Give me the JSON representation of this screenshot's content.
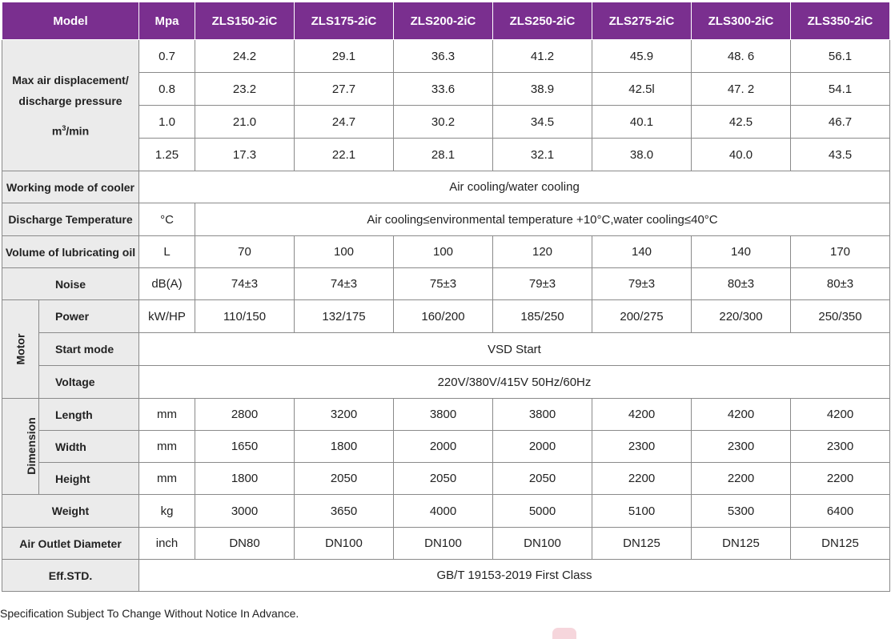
{
  "header": {
    "model_label": "Model",
    "mpa_label": "Mpa",
    "models": [
      "ZLS150-2iC",
      "ZLS175-2iC",
      "ZLS200-2iC",
      "ZLS250-2iC",
      "ZLS275-2iC",
      "ZLS300-2iC",
      "ZLS350-2iC"
    ]
  },
  "air_displacement": {
    "label_line1": "Max air displacement/",
    "label_line2": "discharge pressure",
    "unit_base": "m",
    "unit_sup": "3",
    "unit_rest": "/min",
    "rows": [
      {
        "pressure": "0.7",
        "values": [
          "24.2",
          "29.1",
          "36.3",
          "41.2",
          "45.9",
          "48. 6",
          "56.1"
        ]
      },
      {
        "pressure": "0.8",
        "values": [
          "23.2",
          "27.7",
          "33.6",
          "38.9",
          "42.5l",
          "47. 2",
          "54.1"
        ]
      },
      {
        "pressure": "1.0",
        "values": [
          "21.0",
          "24.7",
          "30.2",
          "34.5",
          "40.1",
          "42.5",
          "46.7"
        ]
      },
      {
        "pressure": "1.25",
        "values": [
          "17.3",
          "22.1",
          "28.1",
          "32.1",
          "38.0",
          "40.0",
          "43.5"
        ]
      }
    ]
  },
  "cooler": {
    "label": "Working mode of cooler",
    "value": "Air cooling/water cooling"
  },
  "discharge_temp": {
    "label": "Discharge Temperature",
    "unit": "°C",
    "value": "Air cooling≤environmental temperature +10°C,water cooling≤40°C"
  },
  "lub_oil": {
    "label": "Volume of lubricating oil",
    "unit": "L",
    "values": [
      "70",
      "100",
      "100",
      "120",
      "140",
      "140",
      "170"
    ]
  },
  "noise": {
    "label": "Noise",
    "unit": "dB(A)",
    "values": [
      "74±3",
      "74±3",
      "75±3",
      "79±3",
      "79±3",
      "80±3",
      "80±3"
    ]
  },
  "motor": {
    "group_label": "Motor",
    "power": {
      "label": "Power",
      "unit": "kW/HP",
      "values": [
        "110/150",
        "132/175",
        "160/200",
        "185/250",
        "200/275",
        "220/300",
        "250/350"
      ]
    },
    "start_mode": {
      "label": "Start mode",
      "value": "VSD Start"
    },
    "voltage": {
      "label": "Voltage",
      "value": "220V/380V/415V  50Hz/60Hz"
    }
  },
  "dimension": {
    "group_label": "Dimension",
    "length": {
      "label": "Length",
      "unit": "mm",
      "values": [
        "2800",
        "3200",
        "3800",
        "3800",
        "4200",
        "4200",
        "4200"
      ]
    },
    "width": {
      "label": "Width",
      "unit": "mm",
      "values": [
        "1650",
        "1800",
        "2000",
        "2000",
        "2300",
        "2300",
        "2300"
      ]
    },
    "height": {
      "label": "Height",
      "unit": "mm",
      "values": [
        "1800",
        "2050",
        "2050",
        "2050",
        "2200",
        "2200",
        "2200"
      ]
    }
  },
  "weight": {
    "label": "Weight",
    "unit": "kg",
    "values": [
      "3000",
      "3650",
      "4000",
      "5000",
      "5100",
      "5300",
      "6400"
    ]
  },
  "outlet": {
    "label": "Air Outlet Diameter",
    "unit": "inch",
    "values": [
      "DN80",
      "DN100",
      "DN100",
      "DN100",
      "DN125",
      "DN125",
      "DN125"
    ]
  },
  "eff": {
    "label": "Eff.STD.",
    "value": "GB/T 19153-2019 First Class"
  },
  "footnote": "Specification Subject To Change Without Notice In Advance.",
  "colors": {
    "header_bg": "#7a2f8f",
    "label_bg": "#ebebeb",
    "border": "#8a8a8a"
  }
}
